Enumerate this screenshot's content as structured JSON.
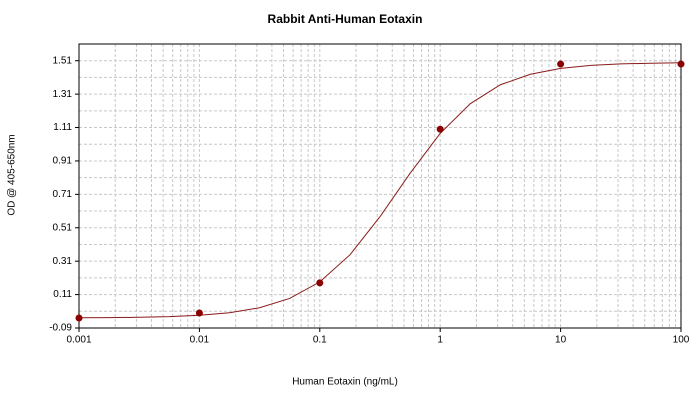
{
  "chart_data": {
    "type": "scatter",
    "title": "Rabbit Anti-Human Eotaxin",
    "xlabel": "Human Eotaxin (ng/mL)",
    "ylabel": "OD @ 405-650nm",
    "xscale": "log",
    "grid": true,
    "minor_grid": true,
    "xlim": [
      0.001,
      100
    ],
    "xticks": [
      0.001,
      0.01,
      0.1,
      1,
      10,
      100
    ],
    "ylim": [
      -0.09,
      1.61
    ],
    "yticks": [
      -0.09,
      0.11,
      0.31,
      0.51,
      0.71,
      0.91,
      1.11,
      1.31,
      1.51
    ],
    "series": [
      {
        "kind": "points",
        "color": "#8b0000",
        "x": [
          0.001,
          0.01,
          0.1,
          1,
          10,
          100
        ],
        "values": [
          -0.03,
          0.0,
          0.18,
          1.1,
          1.49,
          1.49
        ]
      },
      {
        "kind": "fit",
        "color": "#8b1a1a",
        "x": [
          0.001,
          0.00178,
          0.00316,
          0.00562,
          0.01,
          0.0178,
          0.0316,
          0.0562,
          0.1,
          0.178,
          0.316,
          0.562,
          1,
          1.78,
          3.16,
          5.62,
          10,
          17.8,
          31.6,
          56.2,
          100
        ],
        "values": [
          -0.029,
          -0.028,
          -0.026,
          -0.022,
          -0.014,
          0.001,
          0.031,
          0.087,
          0.186,
          0.348,
          0.576,
          0.836,
          1.075,
          1.253,
          1.366,
          1.429,
          1.464,
          1.482,
          1.491,
          1.495,
          1.498
        ]
      }
    ]
  }
}
